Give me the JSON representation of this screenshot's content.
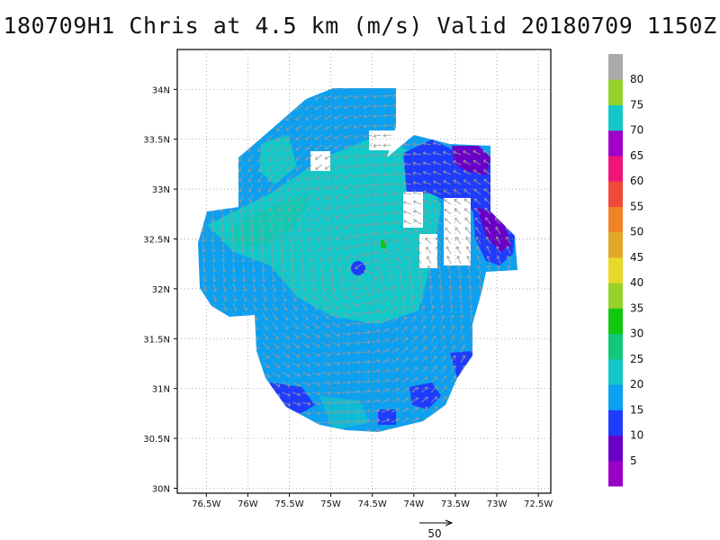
{
  "title": "180709H1 Chris at 4.5 km (m/s) Valid 20180709 1150Z",
  "map": {
    "lon_labels": [
      "76.5W",
      "76W",
      "75.5W",
      "75W",
      "74.5W",
      "74W",
      "73.5W",
      "73W",
      "72.5W"
    ],
    "lon_values": [
      -76.5,
      -76,
      -75.5,
      -75,
      -74.5,
      -74,
      -73.5,
      -73,
      -72.5
    ],
    "lat_labels": [
      "30N",
      "30.5N",
      "31N",
      "31.5N",
      "32N",
      "32.5N",
      "33N",
      "33.5N",
      "34N"
    ],
    "lat_values": [
      30,
      30.5,
      31,
      31.5,
      32,
      32.5,
      33,
      33.5,
      34
    ],
    "lon_range": [
      -76.85,
      -72.35
    ],
    "lat_range": [
      29.95,
      34.4
    ],
    "center": {
      "lon": -74.55,
      "lat": 32.1
    },
    "grid": "dotted"
  },
  "colorbar": {
    "labels": [
      "5",
      "10",
      "15",
      "20",
      "25",
      "30",
      "35",
      "40",
      "45",
      "50",
      "55",
      "60",
      "65",
      "70",
      "75",
      "80"
    ],
    "colors": [
      "#9a00c8",
      "#6a00c8",
      "#1e3cff",
      "#0ca0f0",
      "#12c8c8",
      "#11c87a",
      "#11c811",
      "#96d22a",
      "#e8d827",
      "#e1a827",
      "#f08228",
      "#f04a3a",
      "#f0147a",
      "#a000c8",
      "#12c8c8",
      "#96d22a",
      "#aaaaaa"
    ]
  },
  "vector_key": {
    "label": "50"
  }
}
